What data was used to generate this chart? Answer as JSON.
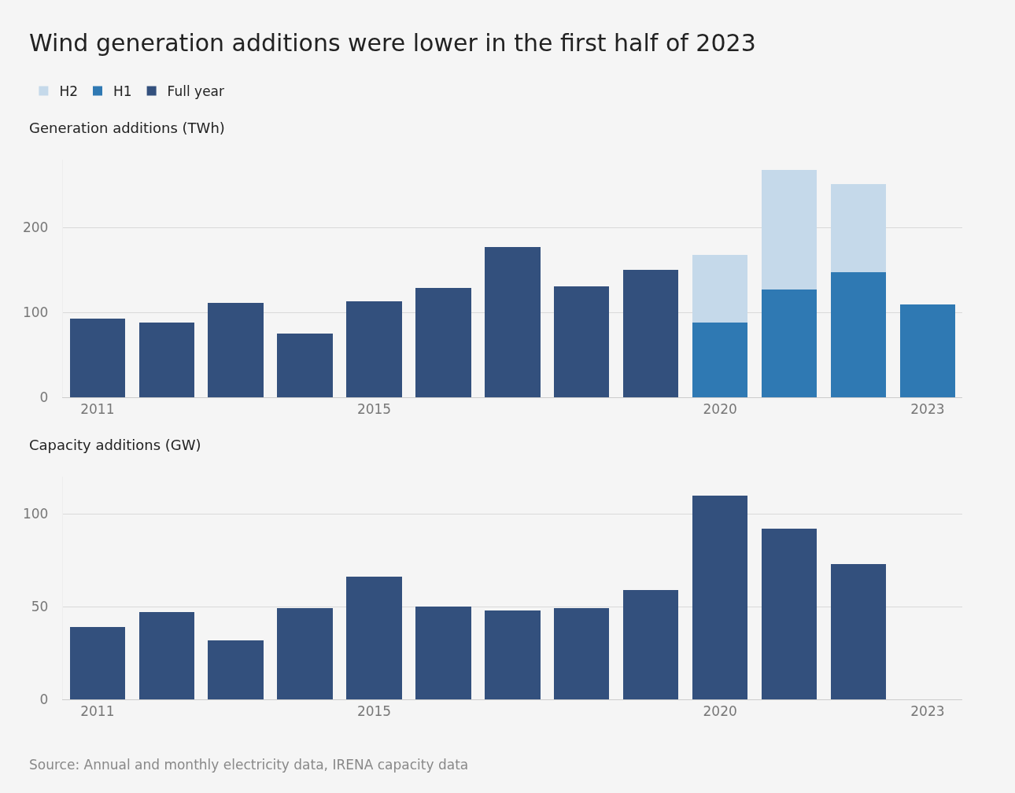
{
  "chart_data": [
    {
      "type": "bar",
      "title": "Wind generation additions were lower in the first half of 2023",
      "ylabel": "Generation additions (TWh)",
      "stacked": true,
      "legend": "top left",
      "grid": "y",
      "x": [
        2011,
        2012,
        2013,
        2014,
        2015,
        2016,
        2017,
        2018,
        2019,
        2020,
        2021,
        2022,
        2023
      ],
      "xlim": [
        2010.5,
        2023.5
      ],
      "xticks": [
        2011,
        2015,
        2020,
        2023
      ],
      "ylim": [
        0,
        280
      ],
      "yticks": [
        0,
        100,
        200
      ],
      "series": [
        {
          "name": "Full year",
          "color": "#33507d",
          "values": [
            93,
            88,
            111,
            75,
            113,
            129,
            177,
            131,
            150,
            null,
            null,
            null,
            null
          ]
        },
        {
          "name": "H1",
          "color": "#2f79b3",
          "values": [
            null,
            null,
            null,
            null,
            null,
            null,
            null,
            null,
            null,
            88,
            127,
            147,
            109
          ]
        },
        {
          "name": "H2",
          "color": "#c5d9ea",
          "values": [
            null,
            null,
            null,
            null,
            null,
            null,
            null,
            null,
            null,
            80,
            141,
            104,
            null
          ]
        }
      ]
    },
    {
      "type": "bar",
      "ylabel": "Capacity additions (GW)",
      "grid": "y",
      "x": [
        2011,
        2012,
        2013,
        2014,
        2015,
        2016,
        2017,
        2018,
        2019,
        2020,
        2021,
        2022
      ],
      "xlim": [
        2010.5,
        2023.5
      ],
      "xticks": [
        2011,
        2015,
        2020,
        2023
      ],
      "ylim": [
        0,
        120
      ],
      "yticks": [
        0,
        50,
        100
      ],
      "annotations": [
        "Source: Annual and monthly electricity data, IRENA capacity data"
      ],
      "series": [
        {
          "color": "#33507d",
          "values": [
            39,
            47,
            32,
            49,
            66,
            50,
            48,
            49,
            59,
            110,
            92,
            73
          ]
        }
      ]
    }
  ]
}
